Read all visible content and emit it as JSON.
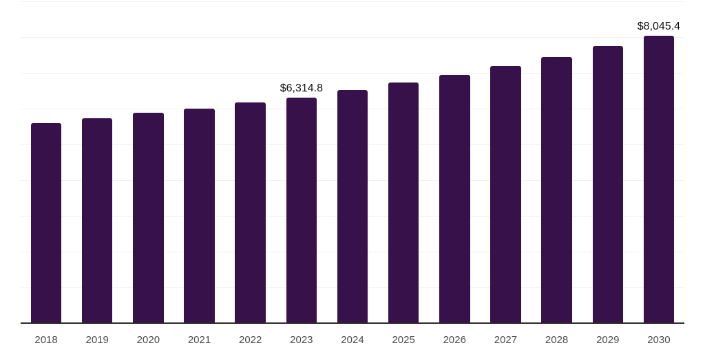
{
  "chart_data": {
    "type": "bar",
    "title": "",
    "xlabel": "",
    "ylabel": "",
    "categories": [
      "2018",
      "2019",
      "2020",
      "2021",
      "2022",
      "2023",
      "2024",
      "2025",
      "2026",
      "2027",
      "2028",
      "2029",
      "2030"
    ],
    "values": [
      5590,
      5735,
      5880,
      5995,
      6165,
      6314.8,
      6520,
      6730,
      6950,
      7190,
      7445,
      7750,
      8045.4
    ],
    "data_labels": {
      "2023": "$6,314.8",
      "2030": "$8,045.4"
    },
    "ylim": [
      0,
      9000
    ],
    "y_tick_labels_visible": false,
    "grid": {
      "show": true,
      "orientation": "horizontal",
      "interval": 1000
    },
    "legend": "none",
    "colors": {
      "bar": "#36114a",
      "gridline": "#f2f2f2",
      "axis_line": "#2b2b2b",
      "x_tick_label": "#4d4d4d",
      "data_label": "#111111",
      "background": "#ffffff"
    }
  }
}
